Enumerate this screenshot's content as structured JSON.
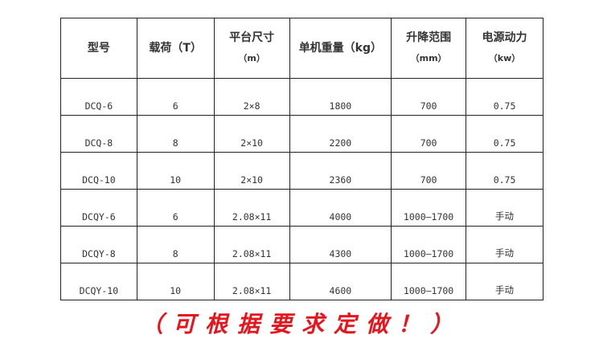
{
  "table": {
    "headers": [
      {
        "label": "型号",
        "unit": ""
      },
      {
        "label": "载荷（T）",
        "unit": ""
      },
      {
        "label": "平台尺寸",
        "unit": "（m）"
      },
      {
        "label": "单机重量（kg）",
        "unit": ""
      },
      {
        "label": "升降范围",
        "unit": "（mm）"
      },
      {
        "label": "电源动力",
        "unit": "（kw）"
      }
    ],
    "rows": [
      [
        "DCQ-6",
        "6",
        "2×8",
        "1800",
        "700",
        "0.75"
      ],
      [
        "DCQ-8",
        "8",
        "2×10",
        "2200",
        "700",
        "0.75"
      ],
      [
        "DCQ-10",
        "10",
        "2×10",
        "2360",
        "700",
        "0.75"
      ],
      [
        "DCQY-6",
        "6",
        "2.08×11",
        "4000",
        "1000—1700",
        "手动"
      ],
      [
        "DCQY-8",
        "8",
        "2.08×11",
        "4300",
        "1000—1700",
        "手动"
      ],
      [
        "DCQY-10",
        "10",
        "2.08×11",
        "4600",
        "1000—1700",
        "手动"
      ]
    ]
  },
  "footer": {
    "text": "（可根据要求定做！）",
    "color": "#e8141b"
  }
}
